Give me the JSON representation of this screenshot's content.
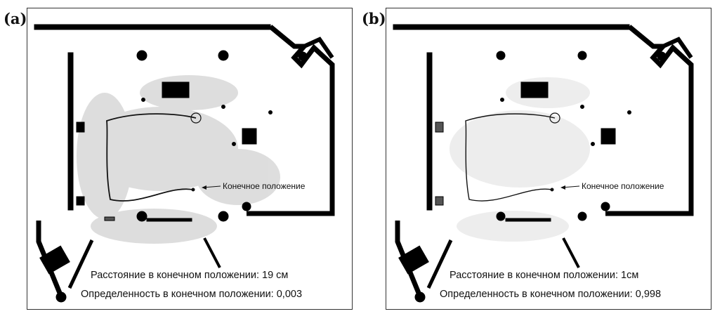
{
  "panels": [
    {
      "label": "(a)",
      "final_position_label": "Конечное положение",
      "distance_text": "Расстояние в конечном положении: 19 см",
      "certainty_text": "Определенность в конечном положении: 0,003"
    },
    {
      "label": "(b)",
      "final_position_label": "Конечное положение",
      "distance_text": "Расстояние в конечном положении: 1см",
      "certainty_text": "Определенность в конечном положении: 0,998"
    }
  ],
  "colors": {
    "wall": "#000000",
    "noise": "#c8c8c8",
    "path": "#111111",
    "frame": "#333333"
  }
}
